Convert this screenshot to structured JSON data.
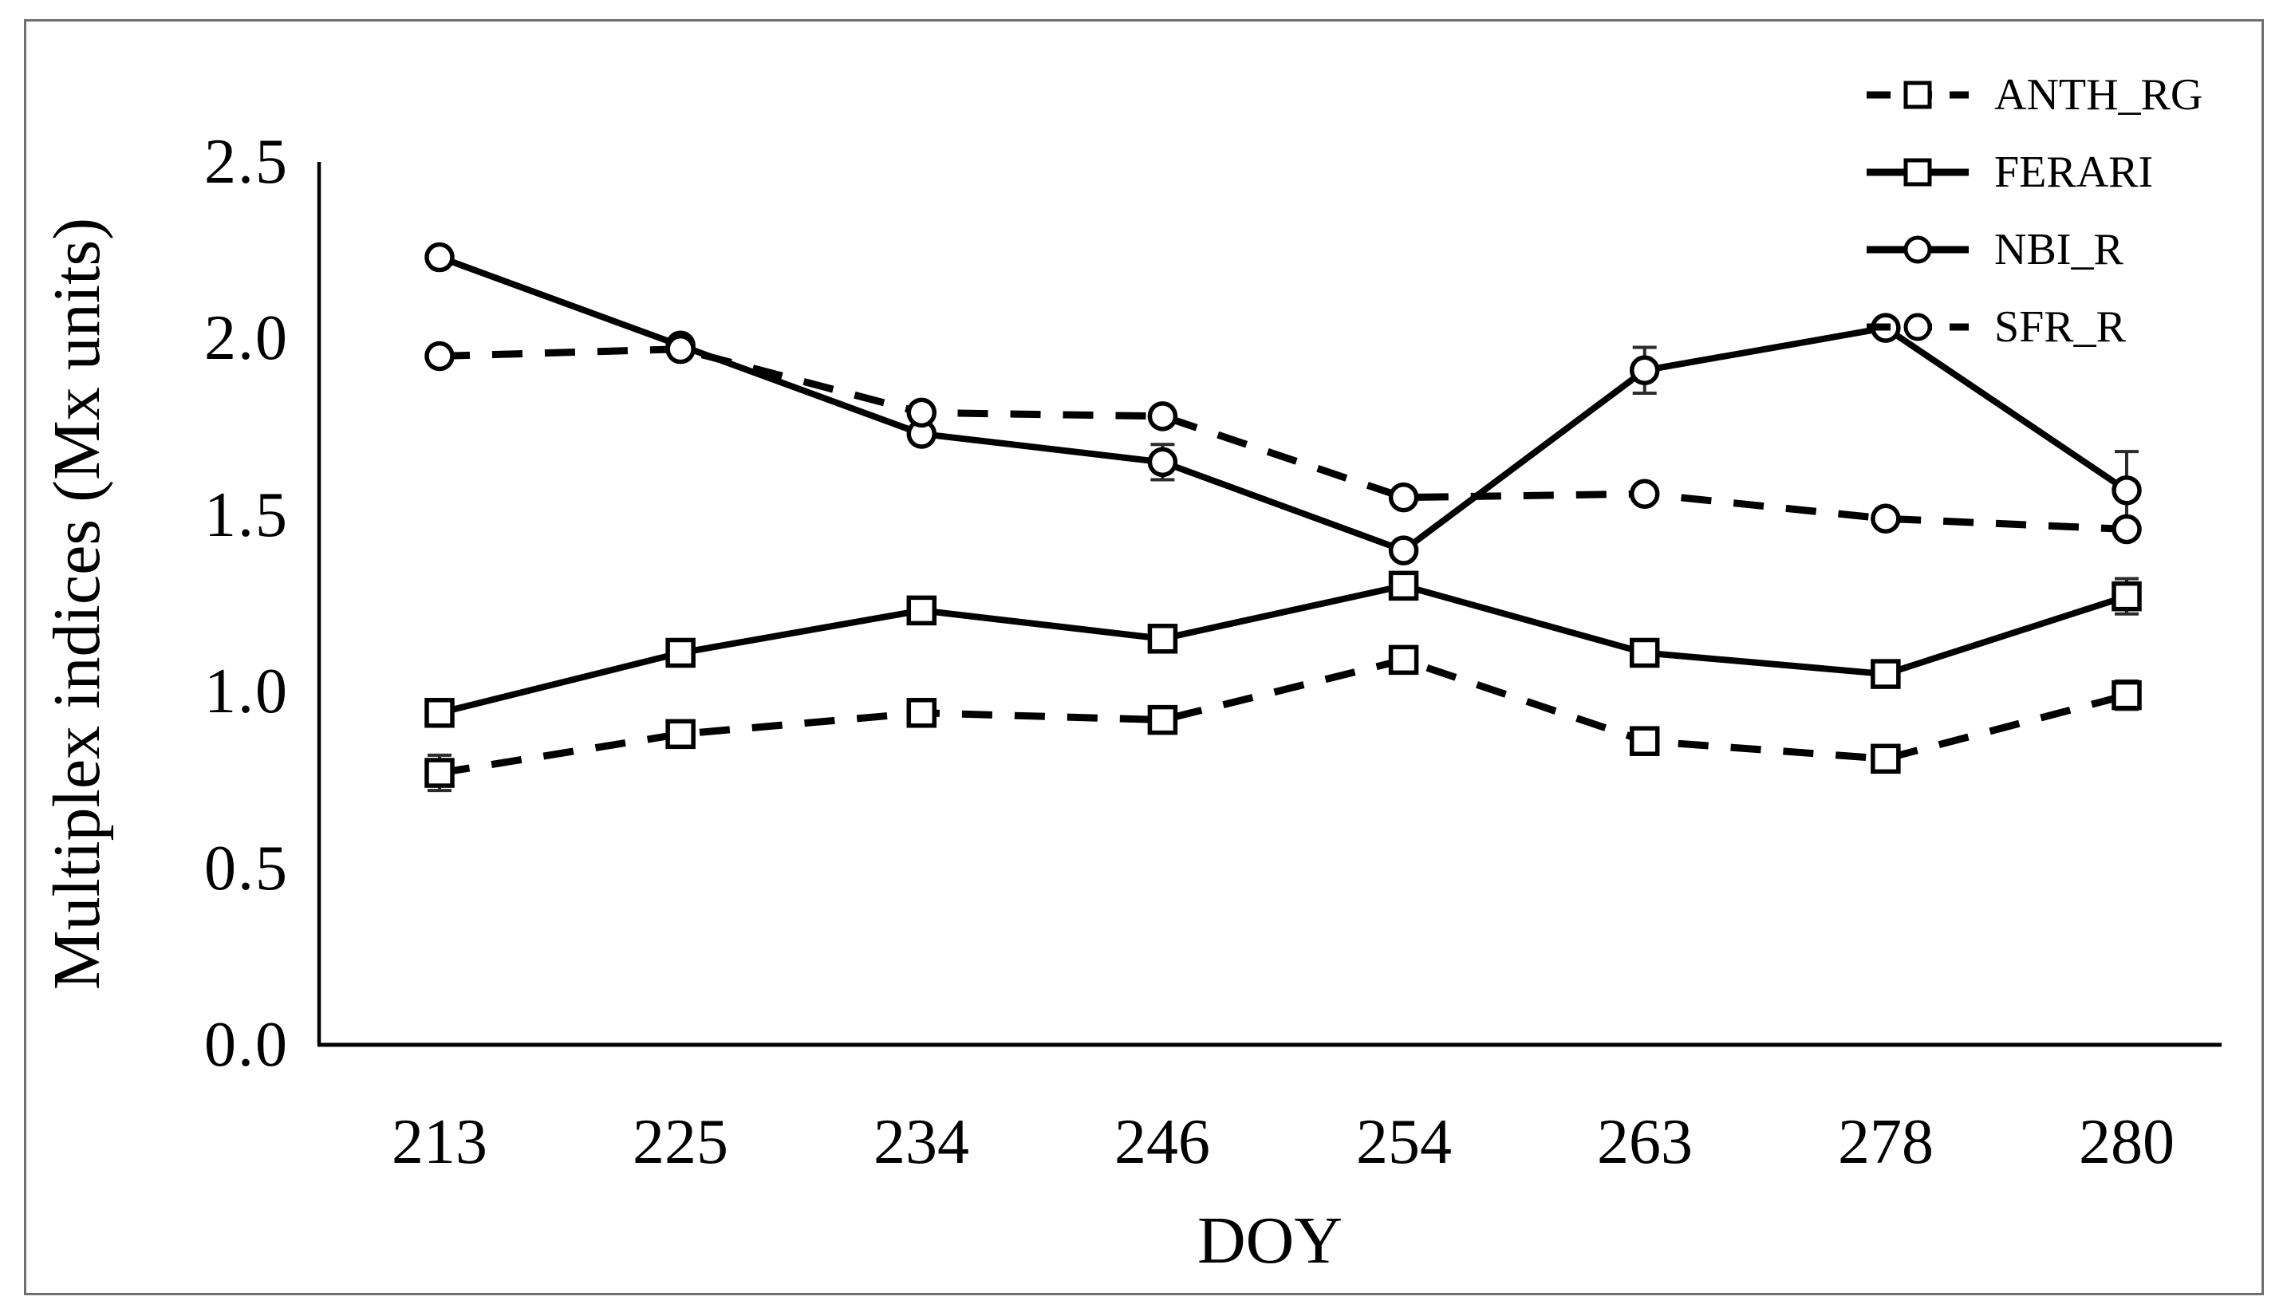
{
  "figure": {
    "background": "#ffffff",
    "border_color": "#6f6f6f",
    "line_color": "#000000"
  },
  "chart_data": {
    "type": "line",
    "title": "",
    "xlabel": "DOY",
    "ylabel": "Multiplex indices (Mx units)",
    "x_type": "categorical",
    "categories": [
      "213",
      "225",
      "234",
      "246",
      "254",
      "263",
      "278",
      "280"
    ],
    "yticks": [
      "0.0",
      "0.5",
      "1.0",
      "1.5",
      "2.0",
      "2.5"
    ],
    "ylim": [
      0,
      2.5
    ],
    "grid": false,
    "legend_position": "top-right",
    "error_bars": true,
    "series": [
      {
        "name": "ANTH_RG",
        "line": "dashed",
        "marker": "square",
        "color": "#000000",
        "values": [
          0.77,
          0.88,
          0.94,
          0.92,
          1.09,
          0.86,
          0.81,
          0.99
        ],
        "errors": [
          0.05,
          0,
          0,
          0,
          0,
          0,
          0,
          0.04
        ]
      },
      {
        "name": "FERARI",
        "line": "solid",
        "marker": "square",
        "color": "#000000",
        "values": [
          0.94,
          1.11,
          1.23,
          1.15,
          1.3,
          1.11,
          1.05,
          1.27
        ],
        "errors": [
          0,
          0,
          0,
          0,
          0,
          0,
          0,
          0.05
        ]
      },
      {
        "name": "NBI_R",
        "line": "solid",
        "marker": "circle",
        "color": "#000000",
        "values": [
          2.23,
          1.98,
          1.73,
          1.65,
          1.4,
          1.91,
          2.03,
          1.57
        ],
        "errors": [
          0,
          0,
          0,
          0.05,
          0,
          0.065,
          0,
          0.11
        ]
      },
      {
        "name": "SFR_R",
        "line": "dashed",
        "marker": "circle",
        "color": "#000000",
        "values": [
          1.95,
          1.97,
          1.79,
          1.78,
          1.55,
          1.56,
          1.49,
          1.46
        ],
        "errors": [
          0,
          0,
          0,
          0,
          0,
          0,
          0,
          0
        ]
      }
    ]
  }
}
